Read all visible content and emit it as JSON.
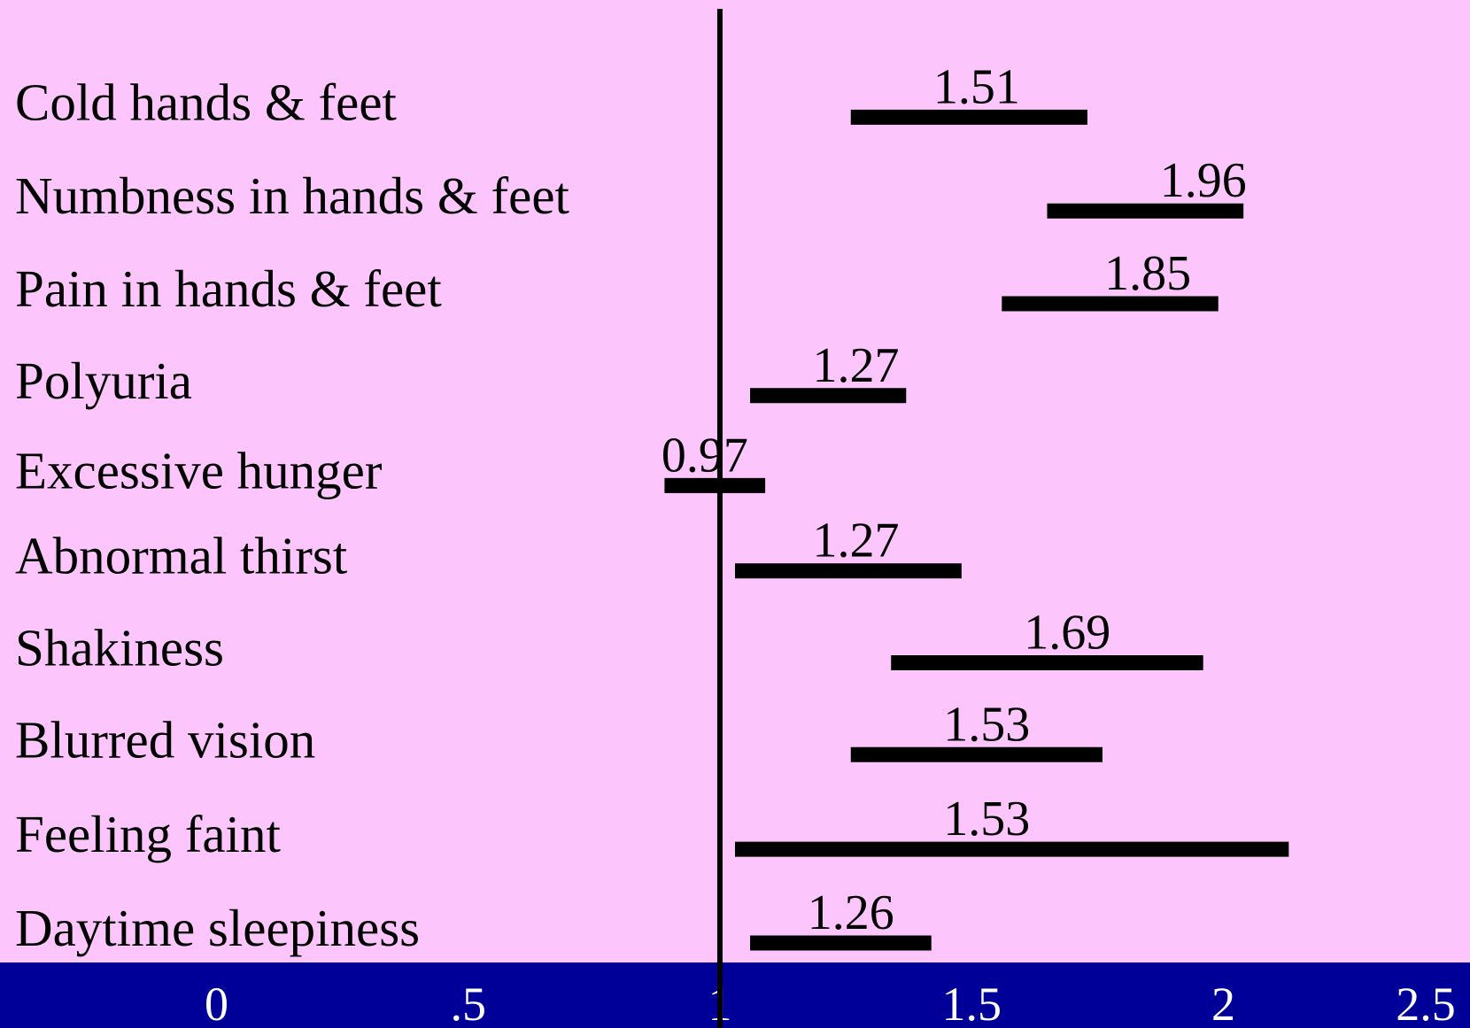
{
  "chart_data": {
    "type": "forest",
    "categories": [
      "Cold hands & feet",
      "Numbness in hands & feet",
      "Pain in hands & feet",
      "Polyuria",
      "Excessive hunger",
      "Abnormal thirst",
      "Shakiness",
      "Blurred vision",
      "Feeling faint",
      "Daytime sleepiness"
    ],
    "values": [
      1.51,
      1.96,
      1.85,
      1.27,
      0.97,
      1.27,
      1.69,
      1.53,
      1.53,
      1.26
    ],
    "lower": [
      1.26,
      1.65,
      1.56,
      1.06,
      0.89,
      1.03,
      1.34,
      1.26,
      1.03,
      1.06
    ],
    "upper": [
      1.73,
      2.04,
      1.99,
      1.37,
      1.09,
      1.48,
      1.96,
      1.76,
      2.13,
      1.42
    ],
    "color": "#000000",
    "reference_line": 1,
    "xlim": [
      -0.43,
      2.49
    ],
    "xticks": [
      0,
      {
        "value": 0.5,
        "label": ".5"
      },
      1,
      1.5,
      2,
      2.5
    ]
  }
}
